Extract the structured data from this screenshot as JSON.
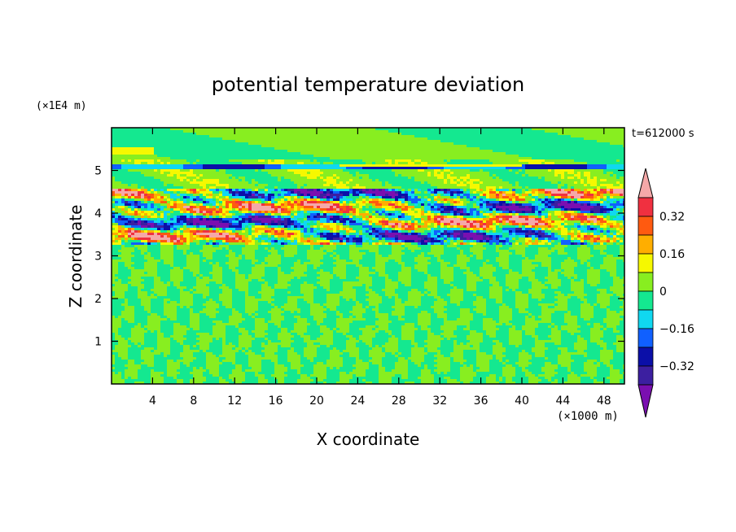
{
  "chart_data": {
    "type": "heatmap",
    "title": "potential temperature deviation",
    "xlabel": "X coordinate",
    "ylabel": "Z coordinate",
    "x_unit": "(×1000 m)",
    "y_unit": "(×1E4 m)",
    "time_label": "t=612000 s",
    "xlim": [
      0,
      50
    ],
    "ylim": [
      0,
      6
    ],
    "x_ticks": [
      "4",
      "8",
      "12",
      "16",
      "20",
      "24",
      "28",
      "32",
      "36",
      "40",
      "44",
      "48"
    ],
    "x_tick_values": [
      4,
      8,
      12,
      16,
      20,
      24,
      28,
      32,
      36,
      40,
      44,
      48
    ],
    "y_ticks": [
      "1",
      "2",
      "3",
      "4",
      "5"
    ],
    "y_tick_values": [
      1,
      2,
      3,
      4,
      5
    ],
    "colorbar": {
      "tick_labels": [
        "0.32",
        "0.16",
        "0",
        "-0.16",
        "-0.32"
      ],
      "tick_values": [
        0.32,
        0.16,
        0,
        -0.16,
        -0.32
      ],
      "levels": [
        -0.4,
        -0.32,
        -0.24,
        -0.16,
        -0.08,
        0,
        0.08,
        0.16,
        0.24,
        0.32,
        0.4
      ],
      "colors": [
        "#7a0fb0",
        "#3c1fa0",
        "#0b0fa8",
        "#1060ff",
        "#10d8f0",
        "#14e890",
        "#88ee20",
        "#f6f800",
        "#ffae00",
        "#ff5a10",
        "#f03040",
        "#f5a8a8"
      ]
    },
    "regions": [
      {
        "z_range": [
          0,
          3.2
        ],
        "description_level": "small-scale noise between -0.08 and 0.08"
      },
      {
        "z_range": [
          3.2,
          4.6
        ],
        "description_level": "strong layered anomalies between -0.4 and 0.4"
      },
      {
        "z_range": [
          4.6,
          6.0
        ],
        "description_level": "weak anomalies mostly between -0.08 and 0.16"
      }
    ]
  }
}
